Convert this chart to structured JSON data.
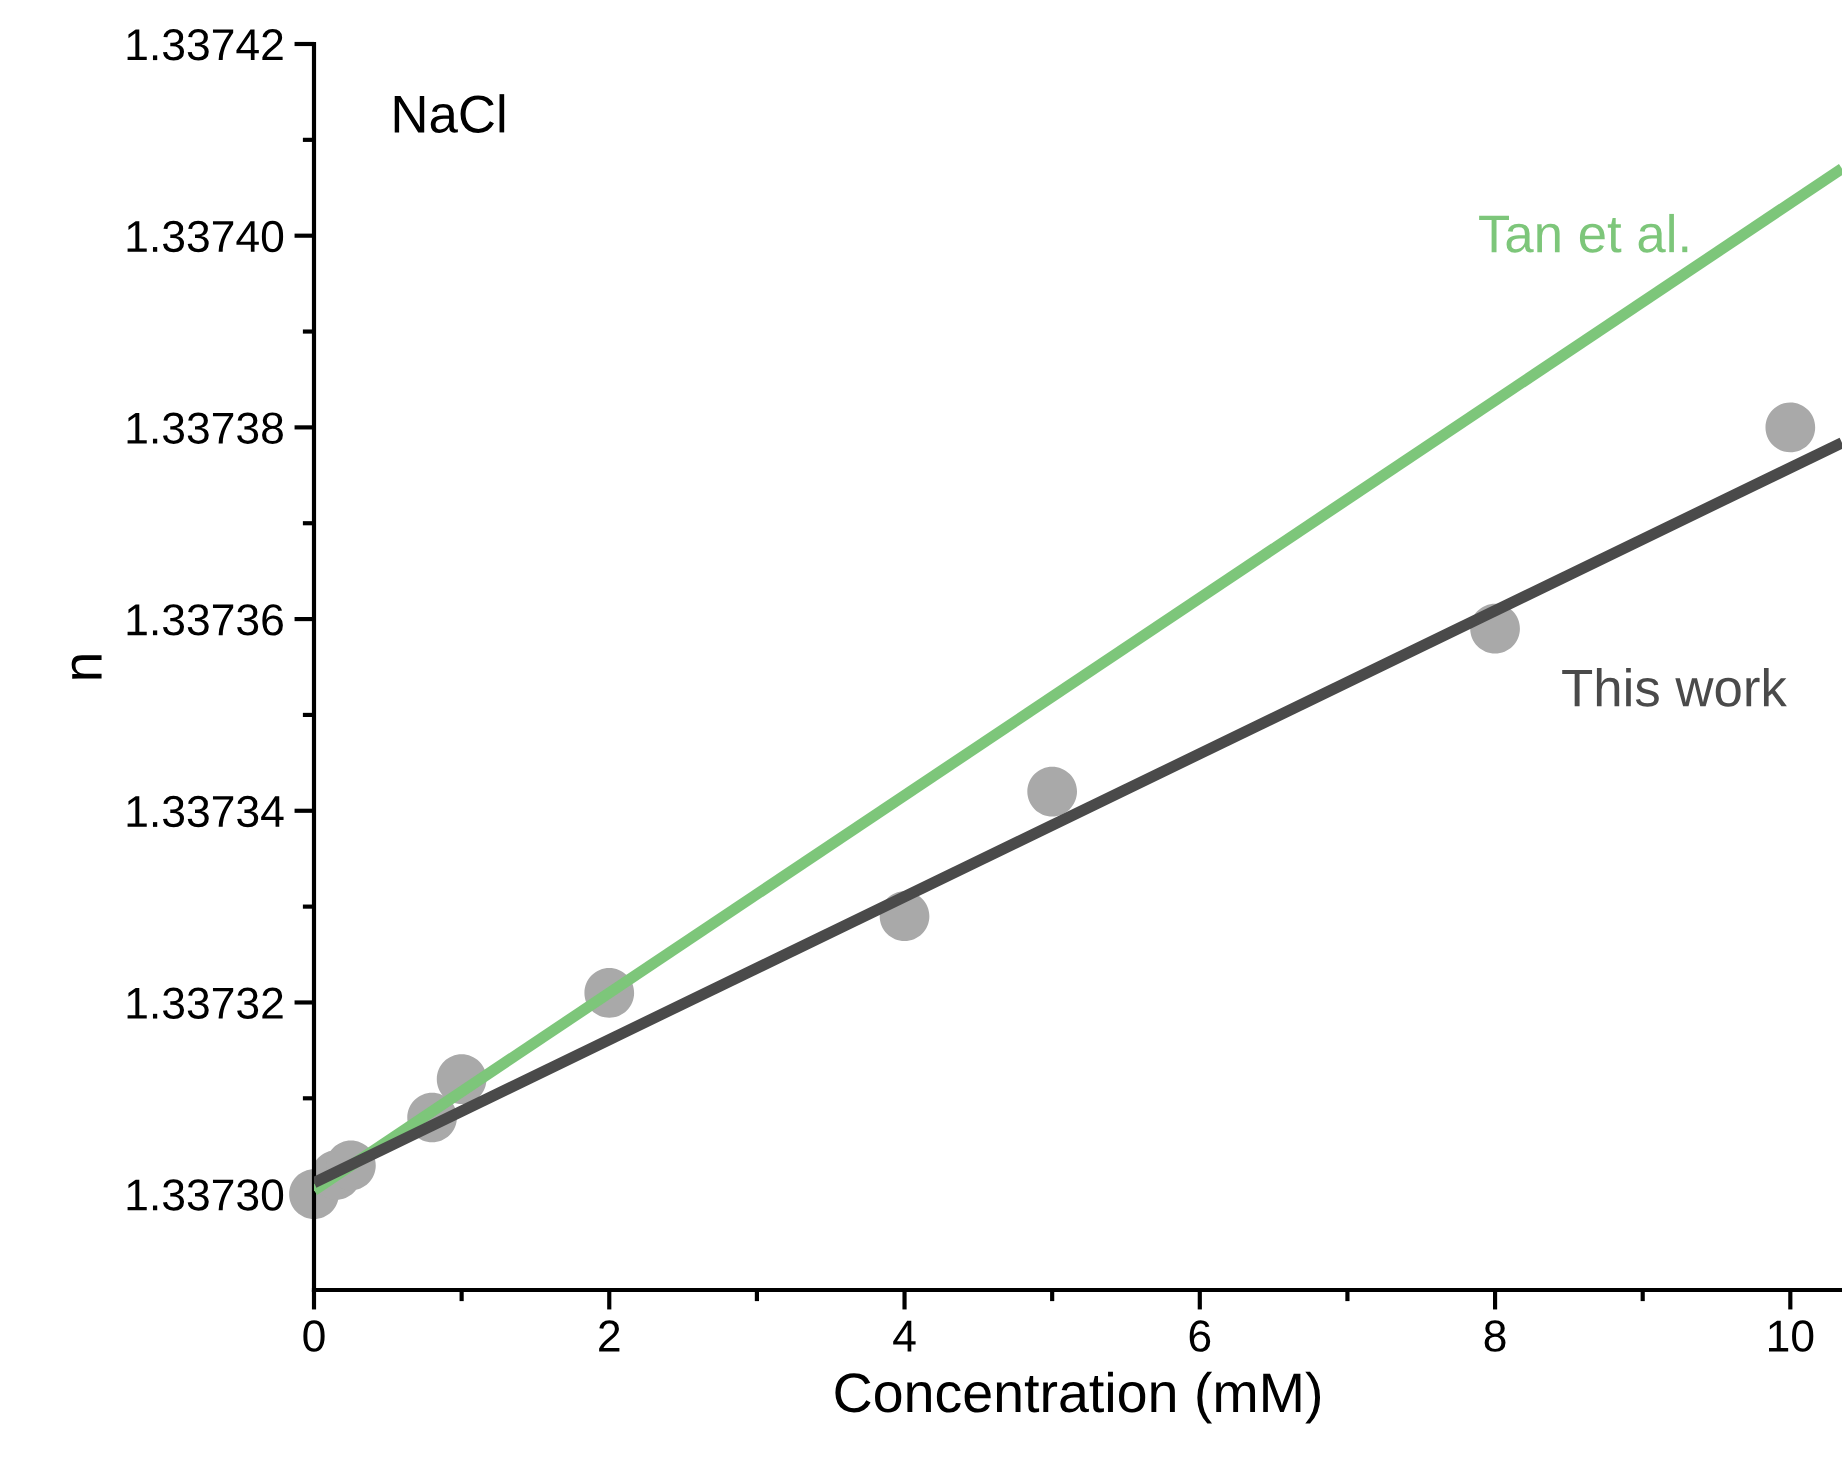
{
  "chart_data": {
    "type": "scatter",
    "xlabel": "Concentration (mM)",
    "ylabel": "n",
    "annotations": [
      "NaCl"
    ],
    "series": [
      {
        "color": "#a9a9a9",
        "marker": "circle",
        "x": [
          0,
          0.15,
          0.25,
          0.8,
          1,
          2,
          4,
          5,
          8,
          10
        ],
        "values": [
          1.3373,
          1.337302,
          1.337303,
          1.337308,
          1.337312,
          1.337321,
          1.337329,
          1.337342,
          1.337359,
          1.33738
        ]
      },
      {
        "type": "line",
        "name": "Tan et al.",
        "color": "#7dc67a",
        "x": [
          0,
          10.35
        ],
        "values": [
          1.3373004,
          1.337407
        ]
      },
      {
        "type": "line",
        "name": "This work",
        "color": "#4a4a4a",
        "x": [
          0,
          10.35
        ],
        "values": [
          1.3373012,
          1.3373784
        ]
      }
    ],
    "xlim": [
      0,
      10.35
    ],
    "ylim": [
      1.33729,
      1.33742
    ],
    "xticks": [
      0,
      {
        "value": 1,
        "label": null
      },
      2,
      {
        "value": 3,
        "label": null
      },
      4,
      {
        "value": 5,
        "label": null
      },
      6,
      {
        "value": 7,
        "label": null
      },
      8,
      {
        "value": 9,
        "label": null
      },
      10
    ],
    "yticks": [
      {
        "value": 1.3373,
        "label": "1.33730"
      },
      {
        "value": 1.33731,
        "label": null
      },
      1.33732,
      {
        "value": 1.33733,
        "label": null
      },
      1.33734,
      {
        "value": 1.33735,
        "label": null
      },
      1.33736,
      {
        "value": 1.33737,
        "label": null
      },
      1.33738,
      {
        "value": 1.33739,
        "label": null
      },
      {
        "value": 1.3374,
        "label": "1.33740"
      },
      {
        "value": 1.33741,
        "label": null
      },
      1.33742
    ],
    "grid": false,
    "legend": false
  }
}
